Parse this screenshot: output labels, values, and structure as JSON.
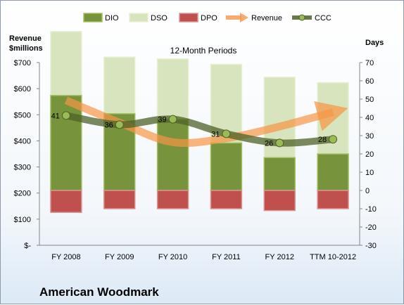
{
  "company": "American Woodmark",
  "chart_data": {
    "type": "bar",
    "title": "12-Month Periods",
    "categories": [
      "FY 2008",
      "FY 2009",
      "FY 2010",
      "FY 2011",
      "FY 2012",
      "TTM 10-2012"
    ],
    "left_axis": {
      "label_lines": [
        "Revenue",
        "$millions"
      ],
      "ylim": [
        0,
        700
      ],
      "ticks": [
        0,
        100,
        200,
        300,
        400,
        500,
        600,
        700
      ],
      "tick_labels": [
        "$-",
        "$100",
        "$200",
        "$300",
        "$400",
        "$500",
        "$600",
        "$700"
      ]
    },
    "right_axis": {
      "label": "Days",
      "ylim": [
        -30,
        70
      ],
      "ticks": [
        -30,
        -20,
        -10,
        0,
        10,
        20,
        30,
        40,
        50,
        60,
        70
      ]
    },
    "series": [
      {
        "name": "DIO",
        "type": "stacked-bar",
        "axis": "right",
        "color": "#77933c",
        "values": [
          52,
          42,
          39,
          26,
          18,
          20
        ]
      },
      {
        "name": "DSO",
        "type": "stacked-bar",
        "axis": "right",
        "color": "#d7e4bd",
        "values": [
          35,
          31,
          33,
          43,
          44,
          39
        ]
      },
      {
        "name": "DPO",
        "type": "bar",
        "axis": "right",
        "color": "#c0504d",
        "values": [
          -12,
          -10,
          -10,
          -10,
          -11,
          -10
        ]
      },
      {
        "name": "Revenue",
        "type": "line",
        "axis": "left",
        "color": "#f79646",
        "values": [
          555,
          470,
          395,
          410,
          455,
          510
        ]
      },
      {
        "name": "CCC",
        "type": "line",
        "axis": "right",
        "color": "#4f6228",
        "values": [
          41,
          36,
          39,
          31,
          26,
          28
        ],
        "labels": [
          "41",
          "36",
          "39",
          "31",
          "26",
          "28"
        ]
      }
    ],
    "legend": "top"
  }
}
